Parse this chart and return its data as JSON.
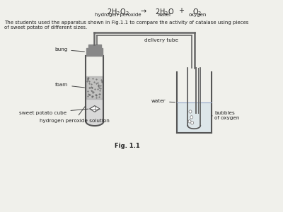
{
  "bg_color": "#f0f0eb",
  "fig_label": "Fig. 1.1",
  "labels": {
    "bung": "bung",
    "foam": "foam",
    "sweet_potato_cube": "sweet potato cube",
    "hydrogen_peroxide": "hydrogen peroxide solution",
    "delivery_tube": "delivery tube",
    "water": "water",
    "bubbles": "bubbles\nof oxygen"
  },
  "colors": {
    "tube_outline": "#555555",
    "bung_fill": "#888888",
    "foam_fill": "#aaaaaa",
    "liquid_fill": "#d8d8d8",
    "bubble": "#888888",
    "delivery_tube": "#666666",
    "text": "#222222",
    "water_fill": "#c8dce8"
  }
}
